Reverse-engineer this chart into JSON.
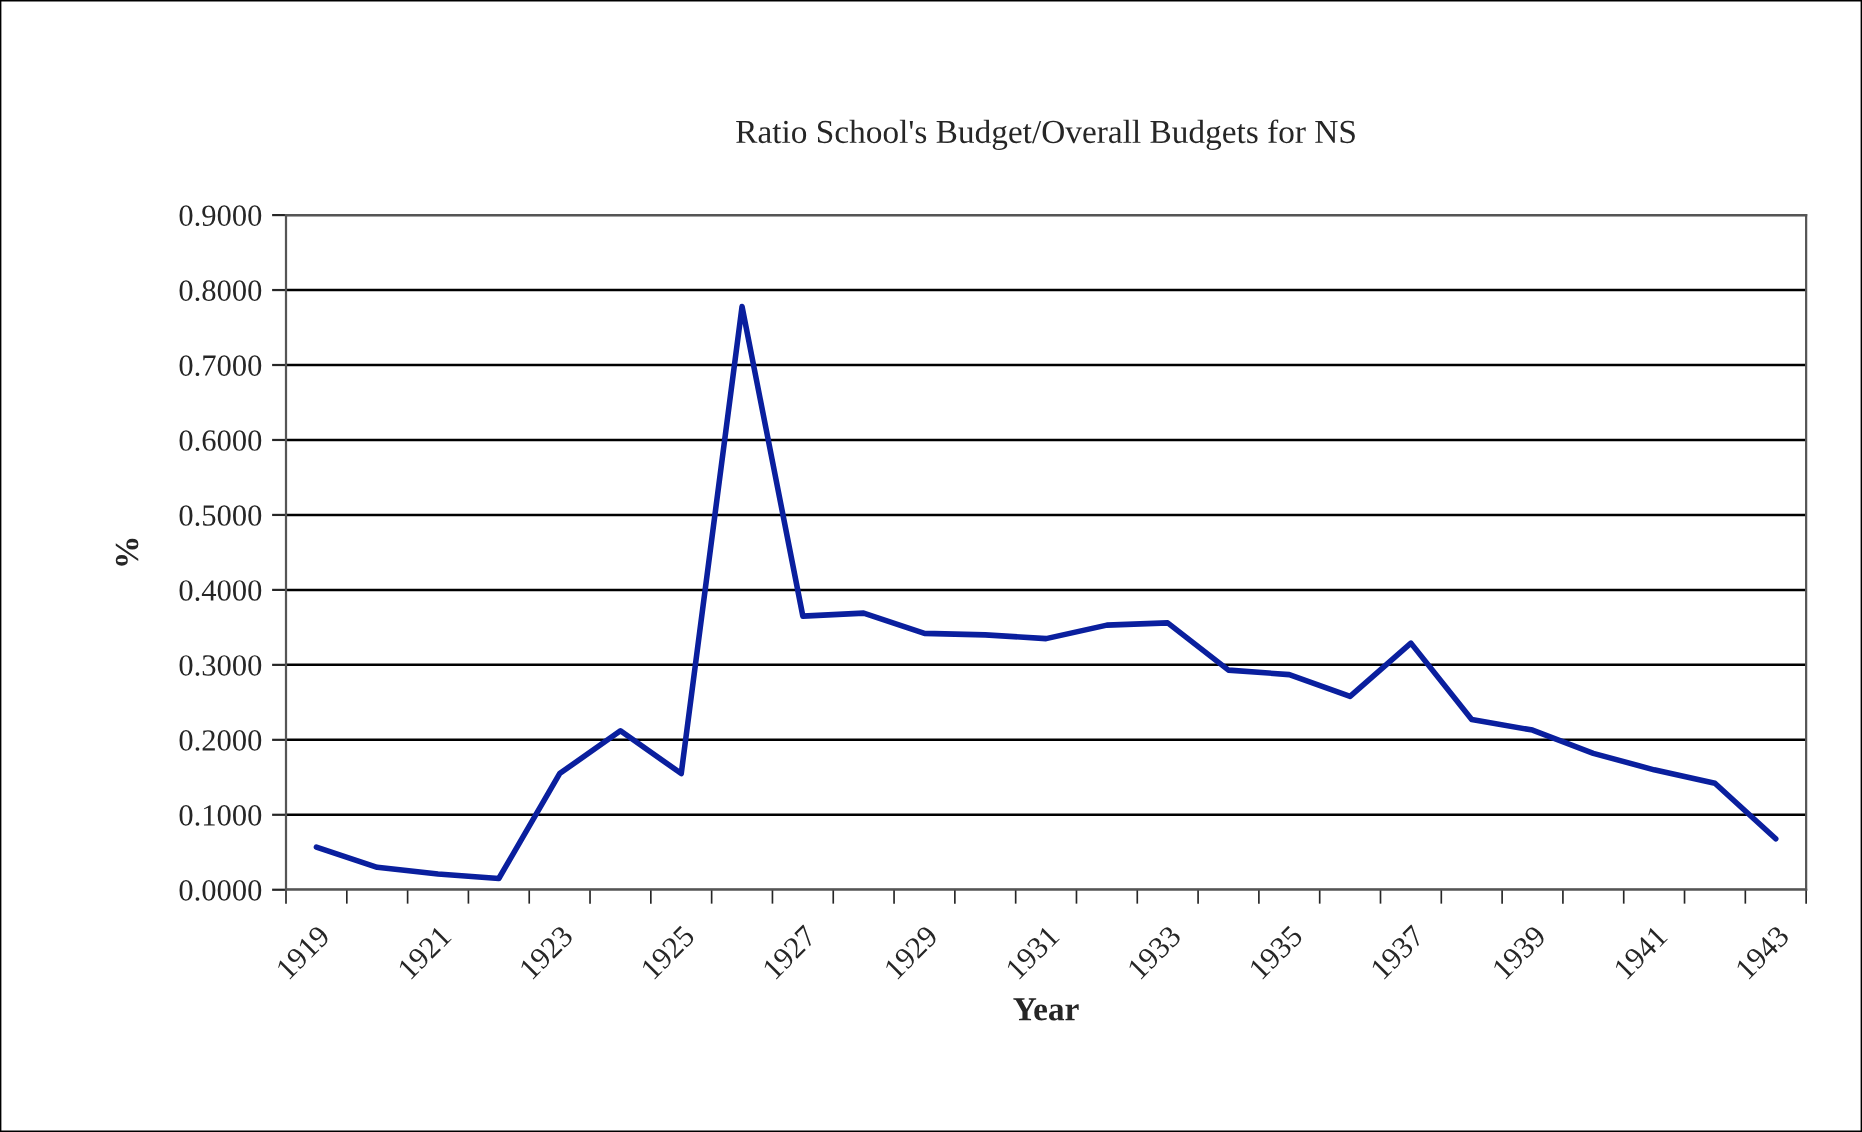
{
  "chart_data": {
    "type": "line",
    "title": "Ratio School's Budget/Overall Budgets for NS",
    "xlabel": "Year",
    "ylabel": "%",
    "categories": [
      "1919",
      null,
      "1921",
      null,
      "1923",
      null,
      "1925",
      null,
      "1927",
      null,
      "1929",
      null,
      "1931",
      null,
      "1933",
      null,
      "1935",
      null,
      "1937",
      null,
      "1939",
      null,
      "1941",
      null,
      "1943"
    ],
    "series": [
      {
        "color": "#0a1f9e",
        "values": [
          0.057,
          0.03,
          0.021,
          0.015,
          0.155,
          0.212,
          0.155,
          0.778,
          0.365,
          0.369,
          0.342,
          0.34,
          0.335,
          0.353,
          0.356,
          0.293,
          0.287,
          0.258,
          0.329,
          0.227,
          0.213,
          0.182,
          0.16,
          0.142,
          0.068
        ]
      }
    ],
    "ylim": [
      0,
      0.9
    ],
    "yticks": [
      {
        "value": 0,
        "label": "0.0000"
      },
      {
        "value": 0.1,
        "label": "0.1000"
      },
      {
        "value": 0.2,
        "label": "0.2000"
      },
      {
        "value": 0.3,
        "label": "0.3000"
      },
      {
        "value": 0.4,
        "label": "0.4000"
      },
      {
        "value": 0.5,
        "label": "0.5000"
      },
      {
        "value": 0.6,
        "label": "0.6000"
      },
      {
        "value": 0.7,
        "label": "0.7000"
      },
      {
        "value": 0.8,
        "label": "0.8000"
      },
      {
        "value": 0.9,
        "label": "0.9000"
      }
    ],
    "grid": "y",
    "marker": "none",
    "line_style": "solid"
  }
}
